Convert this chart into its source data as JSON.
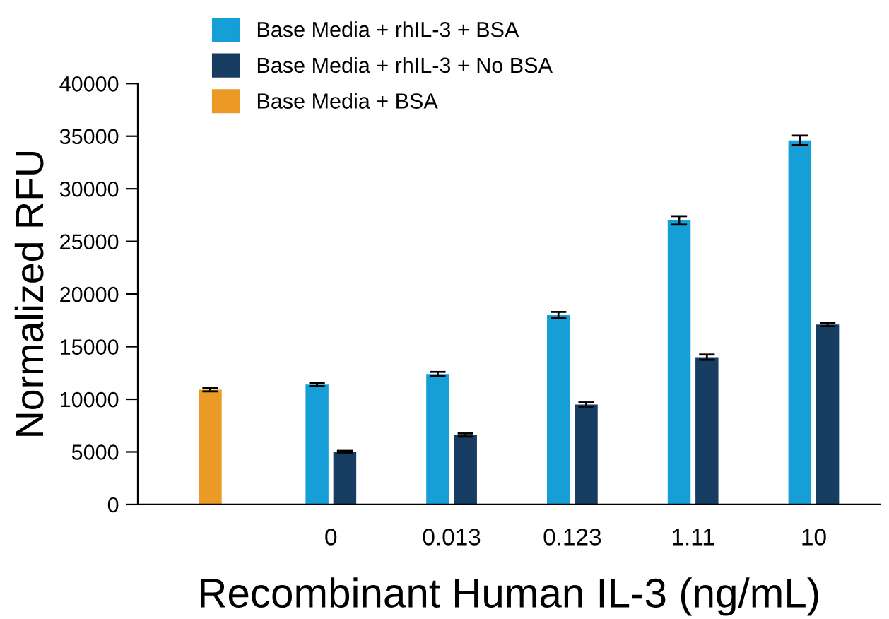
{
  "chart_data": {
    "type": "bar",
    "xlabel": "Recombinant Human IL-3 (ng/mL)",
    "ylabel": "Normalized RFU",
    "categories": [
      null,
      "0",
      "0.013",
      "0.123",
      "1.11",
      "10"
    ],
    "series": [
      {
        "name": "Base Media + rhIL-3 + BSA",
        "color": "#159fd6",
        "values": [
          null,
          11400,
          12400,
          18000,
          27000,
          34600
        ],
        "errors": [
          null,
          150,
          200,
          300,
          400,
          450
        ]
      },
      {
        "name": "Base Media + rhIL-3 + No BSA",
        "color": "#173d63",
        "values": [
          null,
          5000,
          6600,
          9500,
          14000,
          17100
        ],
        "errors": [
          null,
          100,
          150,
          200,
          250,
          150
        ]
      },
      {
        "name": "Base Media + BSA",
        "color": "#ec9a26",
        "values": [
          10900,
          null,
          null,
          null,
          null,
          null
        ],
        "errors": [
          150,
          null,
          null,
          null,
          null,
          null
        ]
      }
    ],
    "ylim": [
      0,
      40000
    ],
    "yticks": [
      0,
      5000,
      10000,
      15000,
      20000,
      25000,
      30000,
      35000,
      40000
    ],
    "grid": false,
    "legend": "top"
  }
}
